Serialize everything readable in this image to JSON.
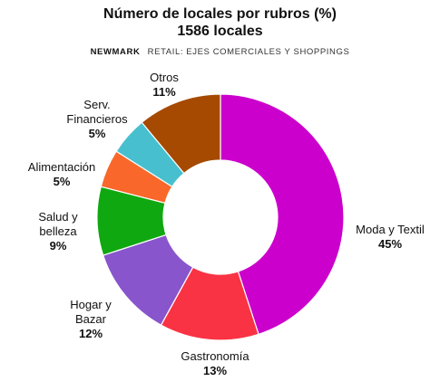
{
  "header": {
    "title_line1": "Número de locales por rubros (%)",
    "title_line2": "1586 locales",
    "source_brand": "NEWMARK",
    "source_text": "RETAIL: EJES COMERCIALES Y SHOPPINGS"
  },
  "chart_data": {
    "type": "pie",
    "donut": true,
    "title": "Número de locales por rubros (%)",
    "subtitle": "1586 locales",
    "unit": "%",
    "categories": [
      "Moda y Textil",
      "Gastronomía",
      "Hogar y Bazar",
      "Salud y belleza",
      "Alimentación",
      "Serv. Financieros",
      "Otros"
    ],
    "values": [
      45,
      13,
      12,
      9,
      5,
      5,
      11
    ],
    "colors": [
      "#cc00cc",
      "#f93344",
      "#8855cc",
      "#10a810",
      "#f9682a",
      "#48bfcf",
      "#a54a00"
    ],
    "labels": [
      {
        "lines": [
          "Moda y Textil"
        ],
        "pct": "45%"
      },
      {
        "lines": [
          "Gastronomía"
        ],
        "pct": "13%"
      },
      {
        "lines": [
          "Hogar y",
          "Bazar"
        ],
        "pct": "12%"
      },
      {
        "lines": [
          "Salud y",
          "belleza"
        ],
        "pct": "9%"
      },
      {
        "lines": [
          "Alimentación"
        ],
        "pct": "5%"
      },
      {
        "lines": [
          "Serv.",
          "Financieros"
        ],
        "pct": "5%"
      },
      {
        "lines": [
          "Otros"
        ],
        "pct": "11%"
      }
    ]
  }
}
